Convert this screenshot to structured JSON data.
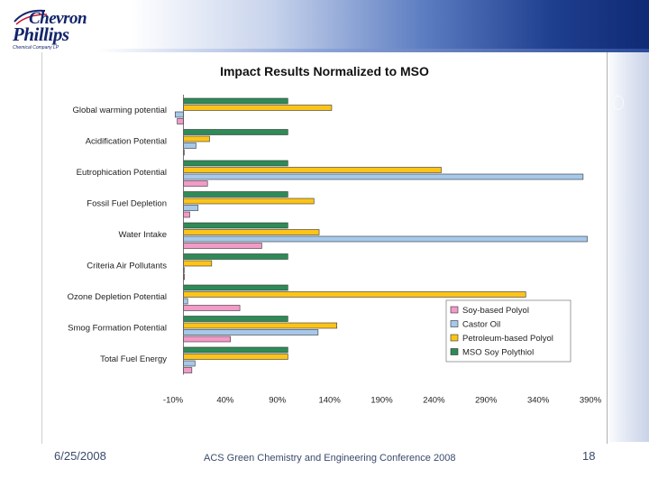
{
  "brand": {
    "line1": "Chevron",
    "line2": "Phillips",
    "tagline": "Chemical Company LP"
  },
  "footer": {
    "date": "6/25/2008",
    "conference": "ACS Green Chemistry and Engineering Conference 2008",
    "page": "18"
  },
  "chart_data": {
    "type": "bar",
    "orientation": "horizontal",
    "title": "Impact Results Normalized to MSO",
    "xlabel": "",
    "ylabel": "",
    "xlim": [
      -10,
      390
    ],
    "x_ticks": [
      "-10%",
      "40%",
      "90%",
      "140%",
      "190%",
      "240%",
      "290%",
      "340%",
      "390%"
    ],
    "x_tick_values": [
      -10,
      40,
      90,
      140,
      190,
      240,
      290,
      340,
      390
    ],
    "grid": false,
    "legend_position": "bottom-right",
    "categories": [
      "Global warming potential",
      "Acidification Potential",
      "Eutrophication Potential",
      "Fossil Fuel Depletion",
      "Water Intake",
      "Criteria Air Pollutants",
      "Ozone Depletion Potential",
      "Smog Formation Potential",
      "Total Fuel Energy"
    ],
    "series": [
      {
        "name": "Soy-based Polyol",
        "color": "#f29ac8",
        "values": [
          -6,
          0,
          23,
          6,
          75,
          1,
          54,
          45,
          8
        ]
      },
      {
        "name": "Castor Oil",
        "color": "#a6c8ea",
        "values": [
          -8,
          12,
          383,
          14,
          387,
          0,
          4,
          129,
          11
        ]
      },
      {
        "name": "Petroleum-based Polyol",
        "color": "#fcc418",
        "values": [
          142,
          25,
          247,
          125,
          130,
          27,
          328,
          147,
          100
        ]
      },
      {
        "name": "MSO Soy Polythiol",
        "color": "#2e8b57",
        "values": [
          100,
          100,
          100,
          100,
          100,
          100,
          100,
          100,
          100
        ]
      }
    ]
  }
}
